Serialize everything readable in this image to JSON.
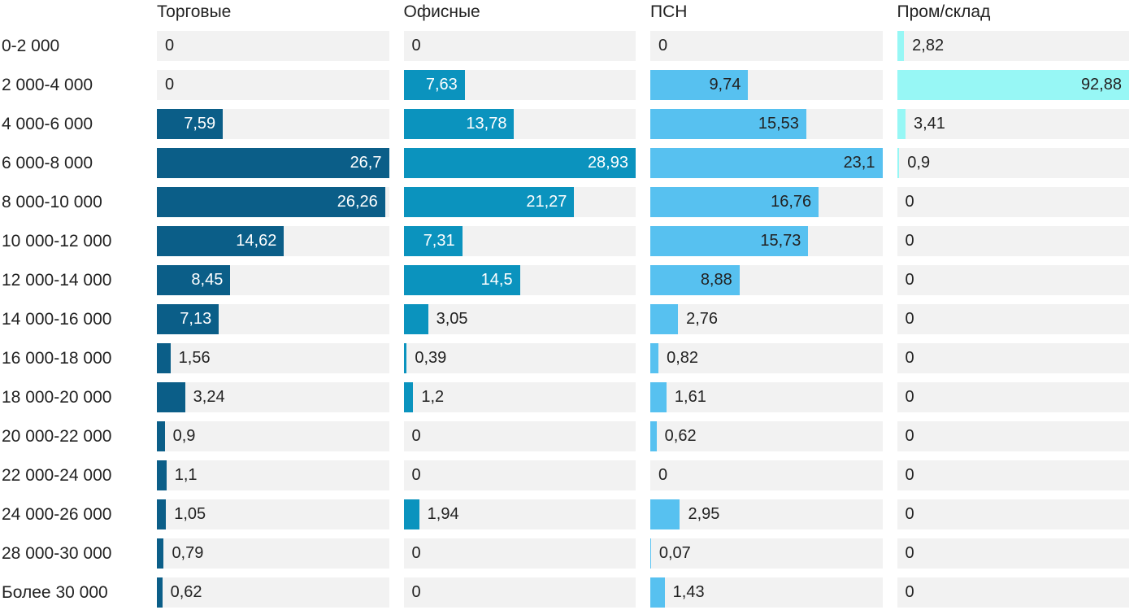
{
  "chart_data": {
    "type": "bar",
    "orientation": "horizontal",
    "title": "",
    "xlabel": "",
    "ylabel": "",
    "scaling": "each column scaled to its own maximum value",
    "decimal_separator": ",",
    "track_color": "#f2f2f2",
    "text_color": "#222222",
    "categories": [
      "0-2 000",
      "2 000-4 000",
      "4 000-6 000",
      "6 000-8 000",
      "8 000-10 000",
      "10 000-12 000",
      "12 000-14 000",
      "14 000-16 000",
      "16 000-18 000",
      "18 000-20 000",
      "20 000-22 000",
      "22 000-24 000",
      "24 000-26 000",
      "28 000-30 000",
      "Более 30 000"
    ],
    "series": [
      {
        "name": "Торговые",
        "color": "#0b5e88",
        "label_color_inside": "#ffffff",
        "max": 26.7,
        "values": [
          0,
          0,
          7.59,
          26.7,
          26.26,
          14.62,
          8.45,
          7.13,
          1.56,
          3.24,
          0.9,
          1.1,
          1.05,
          0.79,
          0.62
        ],
        "labels": [
          "0",
          "0",
          "7,59",
          "26,7",
          "26,26",
          "14,62",
          "8,45",
          "7,13",
          "1,56",
          "3,24",
          "0,9",
          "1,1",
          "1,05",
          "0,79",
          "0,62"
        ]
      },
      {
        "name": "Офисные",
        "color": "#0b93be",
        "label_color_inside": "#ffffff",
        "max": 28.93,
        "values": [
          0,
          7.63,
          13.78,
          28.93,
          21.27,
          7.31,
          14.5,
          3.05,
          0.39,
          1.2,
          0,
          0,
          1.94,
          0,
          0
        ],
        "labels": [
          "0",
          "7,63",
          "13,78",
          "28,93",
          "21,27",
          "7,31",
          "14,5",
          "3,05",
          "0,39",
          "1,2",
          "0",
          "0",
          "1,94",
          "0",
          "0"
        ]
      },
      {
        "name": "ПСН",
        "color": "#57c1f0",
        "label_color_inside": "#222222",
        "max": 23.1,
        "values": [
          0,
          9.74,
          15.53,
          23.1,
          16.76,
          15.73,
          8.88,
          2.76,
          0.82,
          1.61,
          0.62,
          0,
          2.95,
          0.07,
          1.43
        ],
        "labels": [
          "0",
          "9,74",
          "15,53",
          "23,1",
          "16,76",
          "15,73",
          "8,88",
          "2,76",
          "0,82",
          "1,61",
          "0,62",
          "0",
          "2,95",
          "0,07",
          "1,43"
        ]
      },
      {
        "name": "Пром/склад",
        "color": "#97f7f5",
        "label_color_inside": "#222222",
        "max": 92.88,
        "values": [
          2.82,
          92.88,
          3.41,
          0.9,
          0,
          0,
          0,
          0,
          0,
          0,
          0,
          0,
          0,
          0,
          0
        ],
        "labels": [
          "2,82",
          "92,88",
          "3,41",
          "0,9",
          "0",
          "0",
          "0",
          "0",
          "0",
          "0",
          "0",
          "0",
          "0",
          "0",
          "0"
        ]
      }
    ]
  }
}
